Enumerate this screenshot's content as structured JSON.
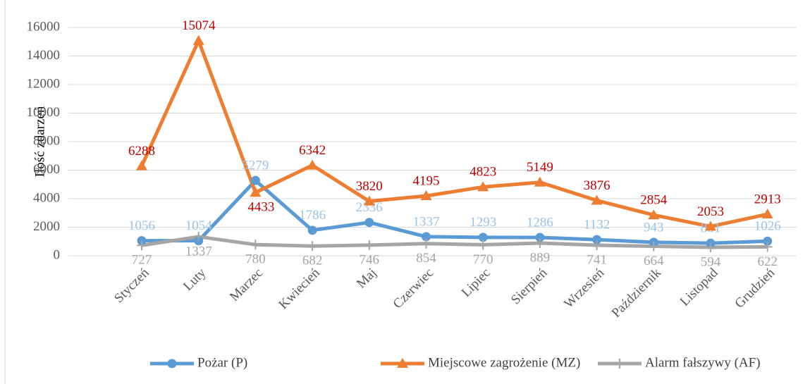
{
  "chart_data": {
    "type": "line",
    "y_label": "Ilość zdarzeń",
    "categories": [
      "Styczeń",
      "Luty",
      "Marzec",
      "Kwiecień",
      "Maj",
      "Czerwiec",
      "Lipiec",
      "Sierpień",
      "Wrzesień",
      "Październik",
      "Listopad",
      "Grudzień"
    ],
    "series": [
      {
        "name": "Pożar (P)",
        "color": "#5b9bd5",
        "label_color": "#9dc3e6",
        "marker": "circle",
        "values": [
          1056,
          1054,
          5279,
          1786,
          2336,
          1337,
          1293,
          1286,
          1132,
          943,
          881,
          1026
        ]
      },
      {
        "name": "Miejscowe zagrożenie (MZ)",
        "color": "#ed7d31",
        "label_color": "#c00000",
        "marker": "triangle",
        "values": [
          6288,
          15074,
          4433,
          6342,
          3820,
          4195,
          4823,
          5149,
          3876,
          2854,
          2053,
          2913
        ]
      },
      {
        "name": "Alarm fałszywy (AF)",
        "color": "#a5a5a5",
        "label_color": "#a5a5a5",
        "marker": "plus",
        "values": [
          727,
          1337,
          780,
          682,
          746,
          854,
          770,
          889,
          741,
          664,
          594,
          622
        ]
      }
    ],
    "ylim": [
      0,
      16000
    ],
    "yticks": [
      0,
      2000,
      4000,
      6000,
      8000,
      10000,
      12000,
      14000,
      16000
    ],
    "grid": true,
    "legend": "bottom"
  }
}
